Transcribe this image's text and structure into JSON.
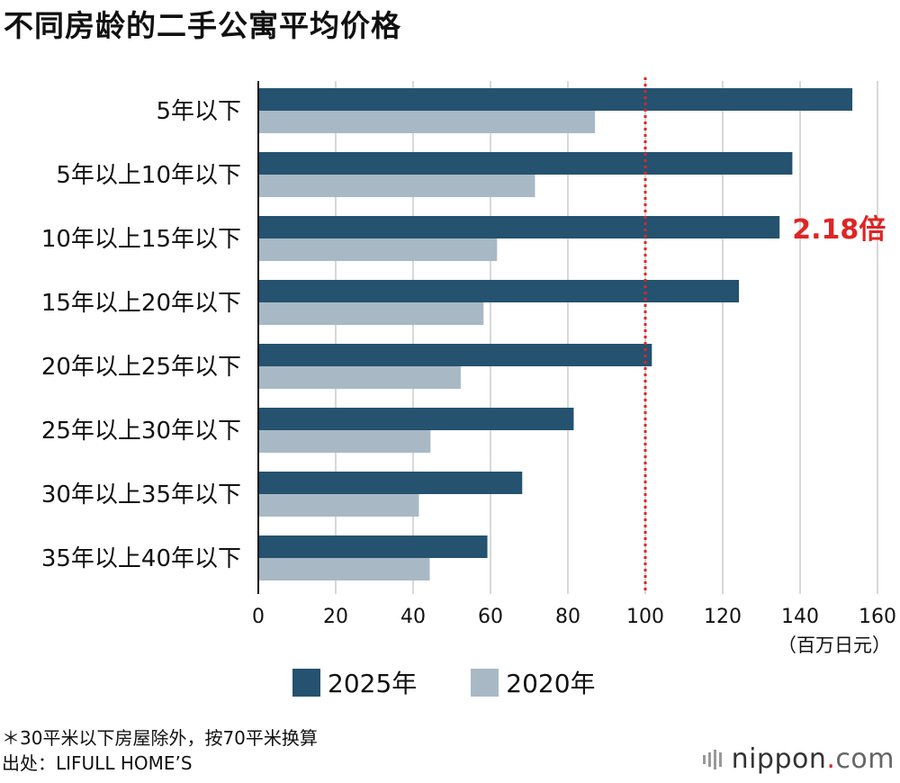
{
  "title": "不同房龄的二手公寓平均价格",
  "chart_data": {
    "type": "bar",
    "orientation": "horizontal",
    "categories": [
      "5年以下",
      "5年以上10年以下",
      "10年以上15年以下",
      "15年以上20年以下",
      "20年以上25年以下",
      "25年以上30年以下",
      "30年以上35年以下",
      "35年以上40年以下"
    ],
    "series": [
      {
        "name": "2025年",
        "color": "#24526f",
        "values": [
          153.5,
          138,
          134.7,
          124.2,
          101.7,
          81.5,
          68.2,
          59.2
        ]
      },
      {
        "name": "2020年",
        "color": "#a8b9c5",
        "values": [
          87,
          71.5,
          61.7,
          58.2,
          52.3,
          44.5,
          41.5,
          44.3
        ]
      }
    ],
    "xlim": [
      0,
      160
    ],
    "xticks": [
      "0",
      "20",
      "40",
      "60",
      "80",
      "100",
      "120",
      "140",
      "160"
    ],
    "xlabel": "（百万日元）",
    "reference_line": {
      "value": 100,
      "color": "#e02424"
    },
    "annotation": {
      "text": "2.18倍",
      "category_index": 2,
      "color": "#e02424"
    }
  },
  "legend": [
    {
      "label": "2025年",
      "color": "#24526f"
    },
    {
      "label": "2020年",
      "color": "#a8b9c5"
    }
  ],
  "footnote": {
    "line1": "＊30平米以下房屋除外，按70平米换算",
    "line2": "出处：LIFULL HOME’S"
  },
  "brand": {
    "name": "nippon",
    "dot": ".",
    "suffix": "com"
  }
}
